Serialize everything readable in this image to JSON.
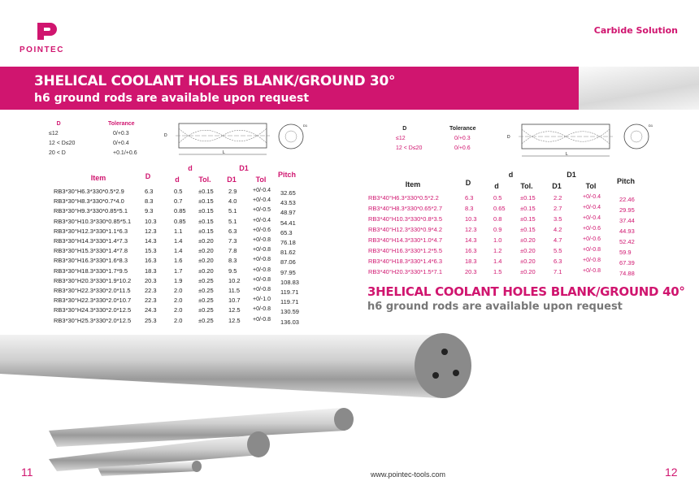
{
  "brand": {
    "logo": "POINTEC",
    "tagline": "Carbide Solution"
  },
  "colors": {
    "accent": "#d0156f"
  },
  "left": {
    "title": "3HELICAL COOLANT HOLES BLANK/GROUND 30°",
    "subtitle": "h6 ground rods are available upon request",
    "tolerance": {
      "headers": [
        "D",
        "Tolerance"
      ],
      "rows": [
        [
          "≤12",
          "0/+0.3"
        ],
        [
          "12 < D≤20",
          "0/+0.4"
        ],
        [
          "20 < D",
          "+0.1/+0.6"
        ]
      ]
    },
    "headers": {
      "item": "Item",
      "D": "D",
      "d_group": "d",
      "d": "d",
      "d_tol": "Tol.",
      "D1_group": "D1",
      "D1": "D1",
      "D1_tol": "Tol",
      "pitch": "Pitch"
    },
    "rows": [
      [
        "RB3*30°H6.3*330*0.5*2.9",
        "6.3",
        "0.5",
        "±0.15",
        "2.9",
        "+0/-0.4",
        "32.65"
      ],
      [
        "RB3*30°H8.3*330*0.7*4.0",
        "8.3",
        "0.7",
        "±0.15",
        "4.0",
        "+0/-0.4",
        "43.53"
      ],
      [
        "RB3*30°H9.3*330*0.85*5.1",
        "9.3",
        "0.85",
        "±0.15",
        "5.1",
        "+0/-0.5",
        "48.97"
      ],
      [
        "RB3*30°H10.3*330*0.85*5.1",
        "10.3",
        "0.85",
        "±0.15",
        "5.1",
        "+0/-0.4",
        "54.41"
      ],
      [
        "RB3*30°H12.3*330*1.1*6.3",
        "12.3",
        "1.1",
        "±0.15",
        "6.3",
        "+0/-0.6",
        "65.3"
      ],
      [
        "RB3*30°H14.3*330*1.4*7.3",
        "14.3",
        "1.4",
        "±0.20",
        "7.3",
        "+0/-0.8",
        "76.18"
      ],
      [
        "RB3*30°H15.3*330*1.4*7.8",
        "15.3",
        "1.4",
        "±0.20",
        "7.8",
        "+0/-0.8",
        "81.62"
      ],
      [
        "RB3*30°H16.3*330*1.6*8.3",
        "16.3",
        "1.6",
        "±0.20",
        "8.3",
        "+0/-0.8",
        "87.06"
      ],
      [
        "RB3*30°H18.3*330*1.7*9.5",
        "18.3",
        "1.7",
        "±0.20",
        "9.5",
        "+0/-0.8",
        "97.95"
      ],
      [
        "RB3*30°H20.3*330*1.9*10.2",
        "20.3",
        "1.9",
        "±0.25",
        "10.2",
        "+0/-0.8",
        "108.83"
      ],
      [
        "RB3*30°H22.3*330*2.0*11.5",
        "22.3",
        "2.0",
        "±0.25",
        "11.5",
        "+0/-0.8",
        "119.71"
      ],
      [
        "RB3*30°H22.3*330*2.0*10.7",
        "22.3",
        "2.0",
        "±0.25",
        "10.7",
        "+0/-1.0",
        "119.71"
      ],
      [
        "RB3*30°H24.3*330*2.0*12.5",
        "24.3",
        "2.0",
        "±0.25",
        "12.5",
        "+0/-0.8",
        "130.59"
      ],
      [
        "RB3*30°H25.3*330*2.0*12.5",
        "25.3",
        "2.0",
        "±0.25",
        "12.5",
        "+0/-0.8",
        "136.03"
      ]
    ],
    "page_number": "11"
  },
  "right": {
    "title": "3HELICAL COOLANT HOLES BLANK/GROUND 40°",
    "subtitle": "h6 ground rods are available upon request",
    "tolerance": {
      "headers": [
        "D",
        "Tolerance"
      ],
      "rows": [
        [
          "≤12",
          "0/+0.3"
        ],
        [
          "12 < D≤20",
          "0/+0.6"
        ]
      ]
    },
    "headers": {
      "item": "Item",
      "D": "D",
      "d_group": "d",
      "d": "d",
      "d_tol": "Tol.",
      "D1_group": "D1",
      "D1": "D1",
      "D1_tol": "Tol",
      "pitch": "Pitch"
    },
    "rows": [
      [
        "RB3*40°H6.3*330*0.5*2.2",
        "6.3",
        "0.5",
        "±0.15",
        "2.2",
        "+0/-0.4",
        "22.46"
      ],
      [
        "RB3*40°H8.3*330*0.65*2.7",
        "8.3",
        "0.65",
        "±0.15",
        "2.7",
        "+0/-0.4",
        "29.95"
      ],
      [
        "RB3*40°H10.3*330*0.8*3.5",
        "10.3",
        "0.8",
        "±0.15",
        "3.5",
        "+0/-0.4",
        "37.44"
      ],
      [
        "RB3*40°H12.3*330*0.9*4.2",
        "12.3",
        "0.9",
        "±0.15",
        "4.2",
        "+0/-0.6",
        "44.93"
      ],
      [
        "RB3*40°H14.3*330*1.0*4.7",
        "14.3",
        "1.0",
        "±0.20",
        "4.7",
        "+0/-0.6",
        "52.42"
      ],
      [
        "RB3*40°H16.3*330*1.2*5.5",
        "16.3",
        "1.2",
        "±0.20",
        "5.5",
        "+0/-0.8",
        "59.9"
      ],
      [
        "RB3*40°H18.3*330*1.4*6.3",
        "18.3",
        "1.4",
        "±0.20",
        "6.3",
        "+0/-0.8",
        "67.39"
      ],
      [
        "RB3*40°H20.3*330*1.5*7.1",
        "20.3",
        "1.5",
        "±0.20",
        "7.1",
        "+0/-0.8",
        "74.88"
      ]
    ],
    "page_number": "12"
  },
  "drawing_labels": {
    "D": "D",
    "L": "L",
    "D1": "D1",
    "d": "d"
  },
  "footer": {
    "website": "www.pointec-tools.com"
  }
}
